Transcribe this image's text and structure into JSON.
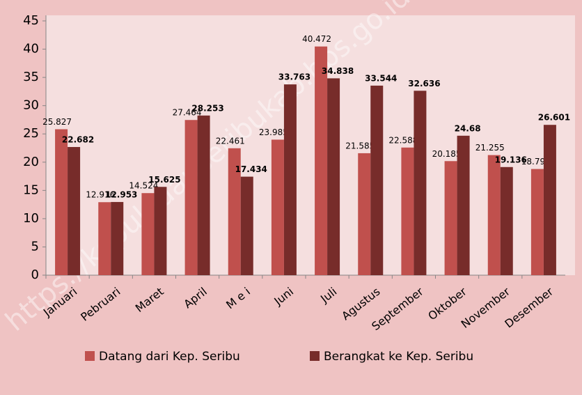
{
  "chart_data": {
    "type": "bar",
    "watermark": "https://kepulauanseribukab.bps.go.id",
    "categories": [
      "Januari",
      "Pebruari",
      "Maret",
      "April",
      "M e i",
      "Juni",
      "Juli",
      "Agustus",
      "September",
      "Oktober",
      "November",
      "Desember"
    ],
    "series": [
      {
        "name": "Datang dari Kep. Seribu",
        "color": "#c0504d",
        "values": [
          25.827,
          12.916,
          14.524,
          27.464,
          22.461,
          23.985,
          40.472,
          21.585,
          22.588,
          20.185,
          21.255,
          18.79
        ]
      },
      {
        "name": "Berangkat ke Kep. Seribu",
        "color": "#772c2a",
        "values": [
          22.682,
          12.953,
          15.625,
          28.253,
          17.434,
          33.763,
          34.838,
          33.544,
          32.636,
          24.68,
          19.136,
          26.601
        ]
      }
    ],
    "ylim": [
      0,
      45
    ],
    "yticks": [
      0,
      5,
      10,
      15,
      20,
      25,
      30,
      35,
      40,
      45
    ],
    "legend": "bottom"
  }
}
